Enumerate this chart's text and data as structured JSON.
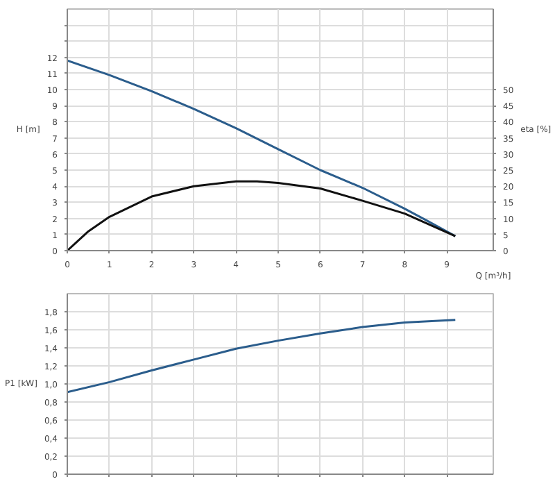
{
  "chart_data": [
    {
      "type": "line",
      "xlabel": "Q [m³/h]",
      "ylabel": "H [m]",
      "y2label": "eta [%]",
      "xlim": [
        0,
        10.1
      ],
      "xticks": [
        0,
        1,
        2,
        3,
        4,
        5,
        6,
        7,
        8,
        9
      ],
      "ylim": [
        0,
        15
      ],
      "yticks": [
        0,
        1,
        2,
        3,
        4,
        5,
        6,
        7,
        8,
        9,
        10,
        11,
        12,
        {
          "value": 13,
          "label": null
        },
        {
          "value": 14,
          "label": null
        }
      ],
      "y2lim": [
        0,
        75
      ],
      "y2ticks": [
        0,
        5,
        10,
        15,
        20,
        25,
        30,
        35,
        40,
        45,
        50
      ],
      "grid": true,
      "marker": "none",
      "line_style": "solid",
      "series": [
        {
          "color": "#2b5d8c",
          "x": [
            0,
            1,
            2,
            3,
            4,
            5,
            6,
            7,
            8,
            8.5,
            9.2
          ],
          "values": [
            11.8,
            10.9,
            9.9,
            8.8,
            7.6,
            6.3,
            5.0,
            3.9,
            2.6,
            1.9,
            0.9
          ]
        },
        {
          "color": "#111111",
          "axis": "y2",
          "x": [
            0,
            0.5,
            1,
            2,
            3,
            4,
            4.5,
            5,
            6,
            7,
            8,
            9.2
          ],
          "values": [
            0,
            6,
            10.5,
            16.8,
            20,
            21.5,
            21.5,
            21,
            19.3,
            15.5,
            11.5,
            4.5
          ]
        }
      ]
    },
    {
      "type": "line",
      "ylabel": "P1 [kW]",
      "xlim": [
        0,
        10.1
      ],
      "xticks": [
        0,
        1,
        2,
        3,
        4,
        5,
        6,
        7,
        8,
        9
      ],
      "ylim": [
        0,
        2
      ],
      "yticks": [
        0,
        {
          "value": 0.2,
          "label": "0,2"
        },
        {
          "value": 0.4,
          "label": "0,4"
        },
        {
          "value": 0.6,
          "label": "0,6"
        },
        {
          "value": 0.8,
          "label": "0,8"
        },
        {
          "value": 1.0,
          "label": "1,0"
        },
        {
          "value": 1.2,
          "label": "1,2"
        },
        {
          "value": 1.4,
          "label": "1,4"
        },
        {
          "value": 1.6,
          "label": "1,6"
        },
        {
          "value": 1.8,
          "label": "1,8"
        }
      ],
      "grid": true,
      "tick_labels": "y",
      "marker": "none",
      "line_style": "solid",
      "series": [
        {
          "color": "#2b5d8c",
          "x": [
            0,
            1,
            2,
            3,
            4,
            5,
            6,
            7,
            8,
            9.2
          ],
          "values": [
            0.91,
            1.02,
            1.15,
            1.27,
            1.39,
            1.48,
            1.56,
            1.63,
            1.68,
            1.71
          ]
        }
      ]
    }
  ]
}
